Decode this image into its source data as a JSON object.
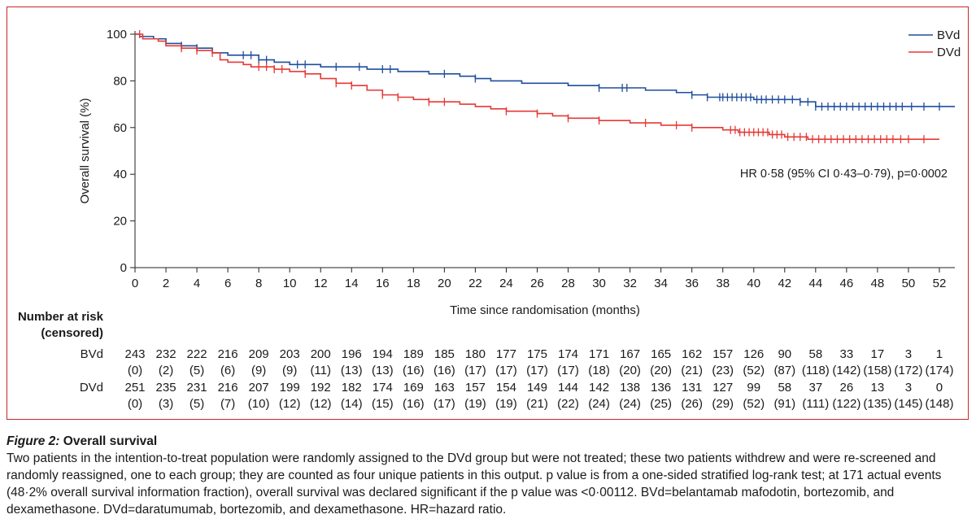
{
  "chart_data": {
    "type": "line",
    "subtype": "kaplan-meier",
    "title": "",
    "xlabel": "Time since randomisation (months)",
    "ylabel": "Overall survival (%)",
    "xlim": [
      0,
      53
    ],
    "ylim": [
      0,
      100
    ],
    "x_ticks": [
      0,
      2,
      4,
      6,
      8,
      10,
      12,
      14,
      16,
      18,
      20,
      22,
      24,
      26,
      28,
      30,
      32,
      34,
      36,
      38,
      40,
      42,
      44,
      46,
      48,
      50,
      52
    ],
    "y_ticks": [
      0,
      20,
      40,
      60,
      80,
      100
    ],
    "grid": false,
    "legend_position": "top-right",
    "annotation": "HR 0·58 (95% CI 0·43–0·79), p=0·0002",
    "series": [
      {
        "name": "BVd",
        "color": "#1f4e9c",
        "points": [
          [
            0,
            100
          ],
          [
            0.3,
            99
          ],
          [
            1.2,
            98
          ],
          [
            2,
            96
          ],
          [
            3,
            95
          ],
          [
            4,
            94
          ],
          [
            5,
            92
          ],
          [
            6,
            91
          ],
          [
            8,
            89
          ],
          [
            9,
            88
          ],
          [
            10,
            87
          ],
          [
            12,
            86
          ],
          [
            14,
            86
          ],
          [
            15,
            85
          ],
          [
            17,
            84
          ],
          [
            19,
            83
          ],
          [
            21,
            82
          ],
          [
            22,
            81
          ],
          [
            23,
            80
          ],
          [
            24,
            80
          ],
          [
            25,
            79
          ],
          [
            28,
            78
          ],
          [
            30,
            77
          ],
          [
            33,
            76
          ],
          [
            35,
            75
          ],
          [
            36,
            74
          ],
          [
            37,
            73
          ],
          [
            38,
            73
          ],
          [
            40,
            72
          ],
          [
            43,
            71
          ],
          [
            44,
            69
          ],
          [
            46,
            69
          ],
          [
            48,
            69
          ],
          [
            50,
            69
          ],
          [
            53,
            69
          ]
        ],
        "censor_times": [
          3,
          4,
          7,
          7.5,
          8,
          8.5,
          10.5,
          11,
          13,
          14.5,
          16,
          16.5,
          20,
          22,
          30,
          31.5,
          31.8,
          36,
          37,
          37.8,
          38,
          38.3,
          38.6,
          38.9,
          39.2,
          39.5,
          39.8,
          40.2,
          40.5,
          40.8,
          41.2,
          41.6,
          42,
          42.5,
          43,
          43.5,
          44,
          44.4,
          44.8,
          45.2,
          45.6,
          46,
          46.4,
          46.8,
          47.2,
          47.6,
          48,
          48.4,
          48.8,
          49.2,
          49.6,
          50.2,
          51,
          52
        ]
      },
      {
        "name": "DVd",
        "color": "#e53935",
        "points": [
          [
            0,
            100
          ],
          [
            0.5,
            98
          ],
          [
            1.5,
            97
          ],
          [
            2,
            95
          ],
          [
            3,
            94
          ],
          [
            4,
            93
          ],
          [
            5,
            92
          ],
          [
            5.5,
            89
          ],
          [
            6,
            88
          ],
          [
            7,
            87
          ],
          [
            7.5,
            86
          ],
          [
            9,
            85
          ],
          [
            10,
            84
          ],
          [
            11,
            83
          ],
          [
            12,
            81
          ],
          [
            13,
            79
          ],
          [
            14,
            78
          ],
          [
            15,
            76
          ],
          [
            16,
            74
          ],
          [
            17,
            73
          ],
          [
            18,
            72
          ],
          [
            19,
            71
          ],
          [
            21,
            70
          ],
          [
            22,
            69
          ],
          [
            23,
            68
          ],
          [
            24,
            67
          ],
          [
            26,
            66
          ],
          [
            27,
            65
          ],
          [
            28,
            64
          ],
          [
            30,
            63
          ],
          [
            32,
            62
          ],
          [
            34,
            61
          ],
          [
            36,
            60
          ],
          [
            38,
            59
          ],
          [
            39,
            58
          ],
          [
            41,
            57
          ],
          [
            42,
            56
          ],
          [
            43.5,
            55
          ],
          [
            46,
            55
          ],
          [
            52,
            55
          ]
        ],
        "censor_times": [
          0.3,
          3,
          4,
          5,
          8,
          8.5,
          9,
          9.5,
          11,
          13,
          14,
          16,
          17,
          19,
          20,
          24,
          26,
          28,
          30,
          33,
          35,
          36,
          38.5,
          38.8,
          39.1,
          39.4,
          39.7,
          40,
          40.3,
          40.6,
          40.9,
          41.2,
          41.5,
          41.8,
          42.2,
          42.6,
          43,
          43.4,
          43.8,
          44.2,
          44.6,
          45,
          45.4,
          45.8,
          46.2,
          46.6,
          47,
          47.4,
          47.8,
          48.2,
          48.6,
          49,
          49.5,
          50,
          51
        ]
      }
    ]
  },
  "risk_table": {
    "heading_line1": "Number at risk",
    "heading_line2": "(censored)",
    "rows": [
      {
        "label": "BVd",
        "at_risk": [
          "243",
          "232",
          "222",
          "216",
          "209",
          "203",
          "200",
          "196",
          "194",
          "189",
          "185",
          "180",
          "177",
          "175",
          "174",
          "171",
          "167",
          "165",
          "162",
          "157",
          "126",
          "90",
          "58",
          "33",
          "17",
          "3",
          "1"
        ],
        "censored": [
          "(0)",
          "(2)",
          "(5)",
          "(6)",
          "(9)",
          "(9)",
          "(11)",
          "(13)",
          "(13)",
          "(16)",
          "(16)",
          "(17)",
          "(17)",
          "(17)",
          "(17)",
          "(18)",
          "(20)",
          "(20)",
          "(21)",
          "(23)",
          "(52)",
          "(87)",
          "(118)",
          "(142)",
          "(158)",
          "(172)",
          "(174)"
        ]
      },
      {
        "label": "DVd",
        "at_risk": [
          "251",
          "235",
          "231",
          "216",
          "207",
          "199",
          "192",
          "182",
          "174",
          "169",
          "163",
          "157",
          "154",
          "149",
          "144",
          "142",
          "138",
          "136",
          "131",
          "127",
          "99",
          "58",
          "37",
          "26",
          "13",
          "3",
          "0"
        ],
        "censored": [
          "(0)",
          "(3)",
          "(5)",
          "(7)",
          "(10)",
          "(12)",
          "(12)",
          "(14)",
          "(15)",
          "(16)",
          "(17)",
          "(19)",
          "(19)",
          "(21)",
          "(22)",
          "(24)",
          "(24)",
          "(25)",
          "(26)",
          "(29)",
          "(52)",
          "(91)",
          "(111)",
          "(122)",
          "(135)",
          "(145)",
          "(148)"
        ]
      }
    ]
  },
  "caption": {
    "figure_label": "Figure 2:",
    "title": "Overall survival",
    "text": "Two patients in the intention-to-treat population were randomly assigned to the DVd group but were not treated; these two patients withdrew and were re-screened and randomly reassigned, one to each group; they are counted as four unique patients in this output. p value is from a one-sided stratified log-rank test; at 171 actual events (48·2% overall survival information fraction), overall survival was declared significant if the p value was <0·00112. BVd=belantamab mafodotin, bortezomib, and dexamethasone. DVd=daratumumab, bortezomib, and dexamethasone. HR=hazard ratio."
  }
}
